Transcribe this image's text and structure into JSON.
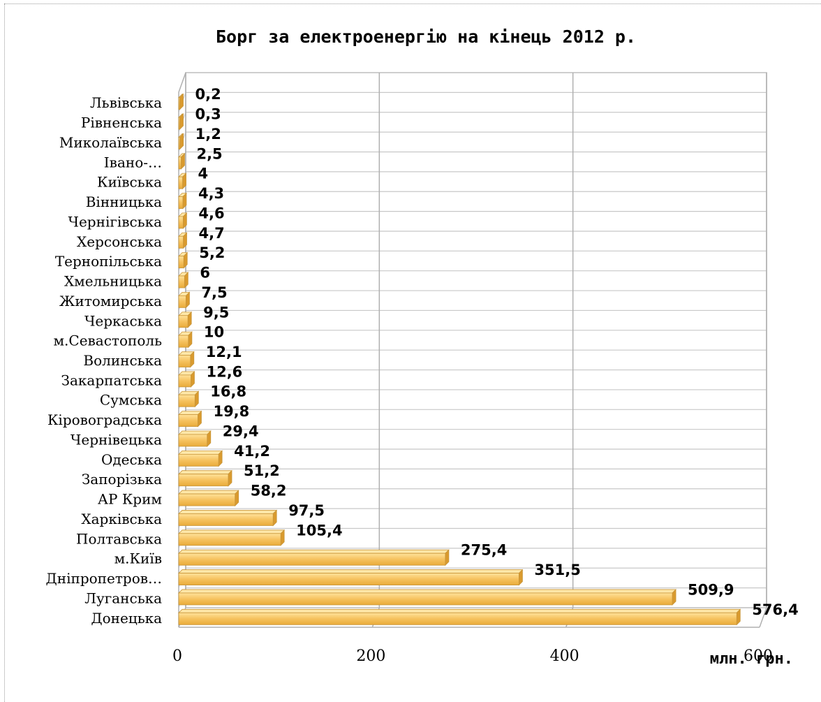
{
  "chart_data": {
    "type": "bar",
    "orientation": "horizontal",
    "title": "Борг за електроенергію на кінець 2012 р.",
    "xlabel": "млн. грн.",
    "ylabel": "",
    "xlim": [
      0,
      600
    ],
    "x_ticks": [
      "0",
      "200",
      "400",
      "600"
    ],
    "grid": true,
    "bar_color": "#f5c565",
    "categories": [
      "Донецька",
      "Луганська",
      "Дніпропетров…",
      "м.Київ",
      "Полтавська",
      "Харківська",
      "АР Крим",
      "Запорізька",
      "Одеська",
      "Чернівецька",
      "Кіровоградська",
      "Сумська",
      "Закарпатська",
      "Волинська",
      "м.Севастополь",
      "Черкаська",
      "Житомирська",
      "Хмельницька",
      "Тернопільська",
      "Херсонська",
      "Чернігівська",
      "Вінницька",
      "Київська",
      "Івано-…",
      "Миколаївська",
      "Рівненська",
      "Львівська"
    ],
    "values": [
      576.4,
      509.9,
      351.5,
      275.4,
      105.4,
      97.5,
      58.2,
      51.2,
      41.2,
      29.4,
      19.8,
      16.8,
      12.6,
      12.1,
      10,
      9.5,
      7.5,
      6,
      5.2,
      4.7,
      4.6,
      4.3,
      4,
      2.5,
      1.2,
      0.3,
      0.2
    ],
    "value_labels": [
      "576,4",
      "509,9",
      "351,5",
      "275,4",
      "105,4",
      "97,5",
      "58,2",
      "51,2",
      "41,2",
      "29,4",
      "19,8",
      "16,8",
      "12,6",
      "12,1",
      "10",
      "9,5",
      "7,5",
      "6",
      "5,2",
      "4,7",
      "4,6",
      "4,3",
      "4",
      "2,5",
      "1,2",
      "0,3",
      "0,2"
    ]
  }
}
